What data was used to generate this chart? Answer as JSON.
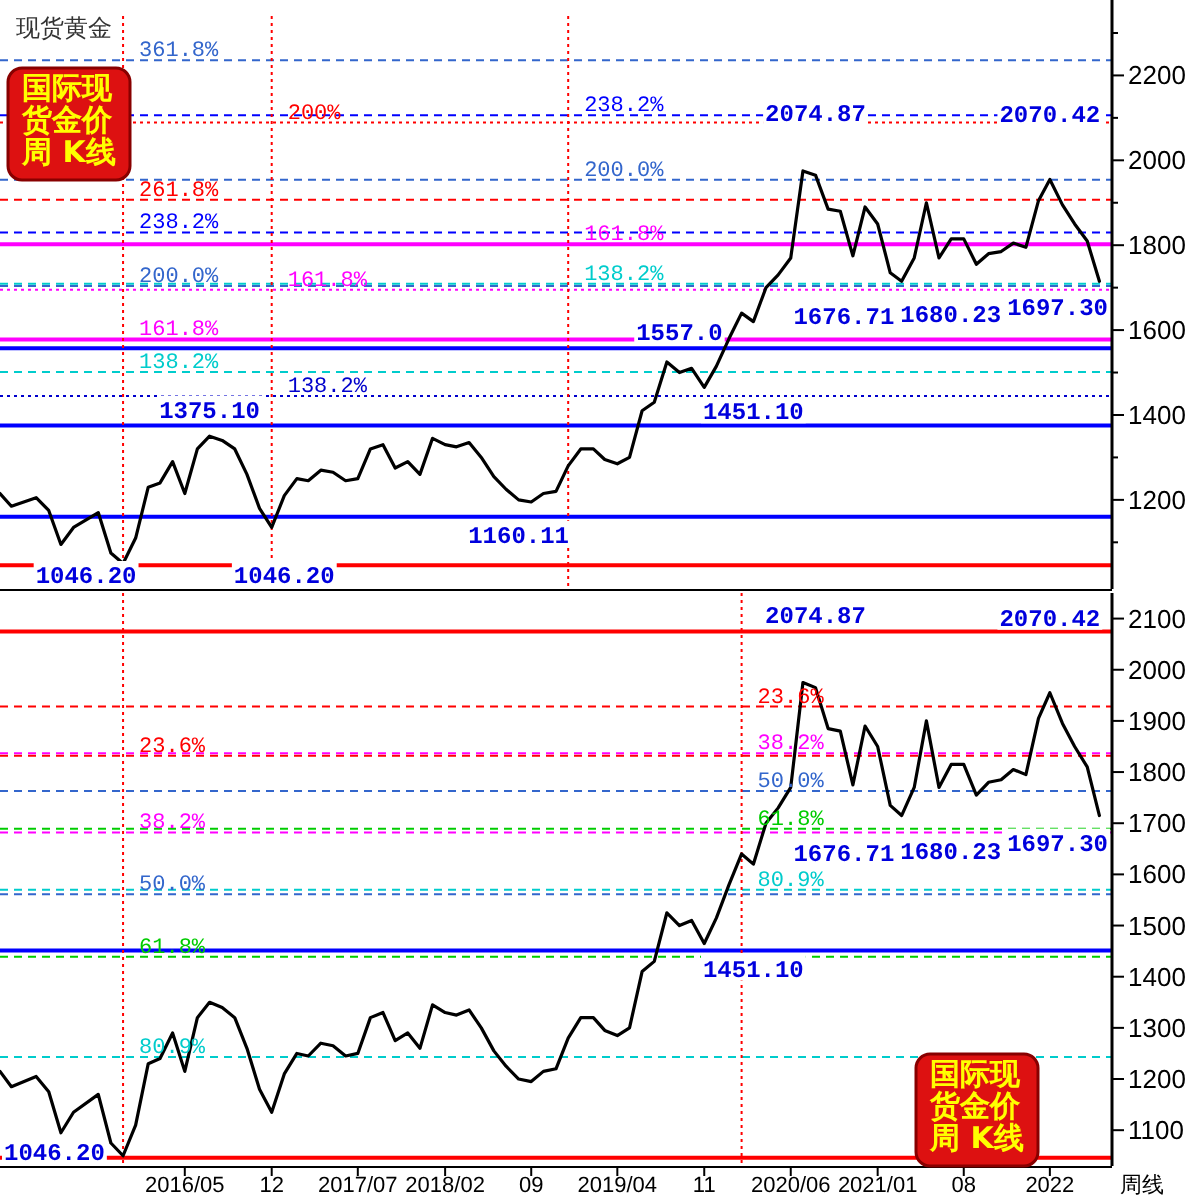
{
  "chart_data": [
    {
      "type": "line",
      "title": "现货黄金",
      "x": [
        "2015-02",
        "2015-03",
        "2015-05",
        "2015-06",
        "2015-07",
        "2015-08",
        "2015-10",
        "2015-11",
        "2015-12",
        "2016-01",
        "2016-02",
        "2016-03",
        "2016-04",
        "2016-05",
        "2016-06",
        "2016-07",
        "2016-08",
        "2016-09",
        "2016-10",
        "2016-11",
        "2016-12",
        "2017-01",
        "2017-02",
        "2017-03",
        "2017-04",
        "2017-05",
        "2017-06",
        "2017-07",
        "2017-08",
        "2017-09",
        "2017-10",
        "2017-11",
        "2017-12",
        "2018-01",
        "2018-02",
        "2018-03",
        "2018-04",
        "2018-05",
        "2018-06",
        "2018-07",
        "2018-08",
        "2018-09",
        "2018-10",
        "2018-11",
        "2018-12",
        "2019-01",
        "2019-02",
        "2019-03",
        "2019-04",
        "2019-05",
        "2019-06",
        "2019-07",
        "2019-08",
        "2019-09",
        "2019-10",
        "2019-11",
        "2019-12",
        "2020-01",
        "2020-02",
        "2020-03",
        "2020-04",
        "2020-05",
        "2020-06",
        "2020-07",
        "2020-08",
        "2020-09",
        "2020-10",
        "2020-11",
        "2020-12",
        "2021-01",
        "2021-02",
        "2021-03",
        "2021-04",
        "2021-05",
        "2021-06",
        "2021-07",
        "2021-08",
        "2021-09",
        "2021-10",
        "2021-11",
        "2021-12",
        "2022-01",
        "2022-02",
        "2022-03",
        "2022-04",
        "2022-05",
        "2022-06",
        "2022-07"
      ],
      "series": [
        {
          "color": "#000000",
          "values": [
            1215,
            1185,
            1205,
            1175,
            1095,
            1135,
            1170,
            1075,
            1050,
            1110,
            1230,
            1240,
            1290,
            1215,
            1320,
            1350,
            1340,
            1320,
            1260,
            1180,
            1135,
            1210,
            1250,
            1245,
            1270,
            1265,
            1245,
            1250,
            1320,
            1330,
            1275,
            1290,
            1260,
            1345,
            1330,
            1325,
            1335,
            1300,
            1255,
            1225,
            1200,
            1195,
            1215,
            1220,
            1280,
            1320,
            1320,
            1295,
            1285,
            1300,
            1410,
            1430,
            1525,
            1500,
            1510,
            1465,
            1515,
            1580,
            1640,
            1620,
            1700,
            1730,
            1770,
            1975,
            1965,
            1885,
            1880,
            1775,
            1890,
            1850,
            1735,
            1715,
            1770,
            1900,
            1770,
            1815,
            1815,
            1755,
            1780,
            1785,
            1805,
            1795,
            1905,
            1955,
            1895,
            1850,
            1810,
            1715
          ]
        }
      ],
      "xlim": [
        "2015-02",
        "2022-08"
      ],
      "ylim": [
        990,
        2340
      ],
      "yticks": [
        {
          "value": 1100,
          "label": null
        },
        1200,
        {
          "value": 1300,
          "label": null
        },
        1400,
        {
          "value": 1500,
          "label": null
        },
        1600,
        {
          "value": 1700,
          "label": null
        },
        1800,
        {
          "value": 1900,
          "label": null
        },
        2000,
        {
          "value": 2100,
          "label": null
        },
        2200,
        {
          "value": 2300,
          "label": null
        }
      ],
      "tick_labels": "y",
      "ref_lines": [
        {
          "axis": "y",
          "value": 2236,
          "color": "#3366cc",
          "line_style": "dashed"
        },
        {
          "axis": "y",
          "value": 2089,
          "color": "#ff0000",
          "line_style": "dotted"
        },
        {
          "axis": "y",
          "value": 1907,
          "color": "#ff0000",
          "line_style": "dashed"
        },
        {
          "axis": "y",
          "value": 1830,
          "color": "#0000ff",
          "line_style": "dashed"
        },
        {
          "axis": "y",
          "value": 1704,
          "color": "#3366cc",
          "line_style": "dashed"
        },
        {
          "axis": "y",
          "value": 1578,
          "color": "#ff00ff",
          "line_style": "solid"
        },
        {
          "axis": "y",
          "value": 1501,
          "color": "#00cccc",
          "line_style": "dashed"
        },
        {
          "axis": "y",
          "value": 1695,
          "color": "#ff00ff",
          "line_style": "dotted"
        },
        {
          "axis": "y",
          "value": 1445,
          "color": "#0000cc",
          "line_style": "dotted"
        },
        {
          "axis": "y",
          "value": 2106,
          "color": "#0000ff",
          "line_style": "dashed"
        },
        {
          "axis": "y",
          "value": 1954,
          "color": "#3366cc",
          "line_style": "dashed"
        },
        {
          "axis": "y",
          "value": 1802,
          "color": "#ff00ff",
          "line_style": "solid"
        },
        {
          "axis": "y",
          "value": 1709,
          "color": "#00cccc",
          "line_style": "dashed"
        },
        {
          "axis": "y",
          "value": 1375.1,
          "color": "#0000ff",
          "line_style": "solid"
        },
        {
          "axis": "y",
          "value": 1557,
          "color": "#0000ff",
          "line_style": "solid"
        },
        {
          "axis": "y",
          "value": 1160.11,
          "color": "#0000ff",
          "line_style": "solid"
        },
        {
          "axis": "y",
          "value": 1046.2,
          "color": "#ff0000",
          "line_style": "solid"
        },
        {
          "axis": "x",
          "value": "2015-12",
          "color": "#ff0000",
          "line_style": "dotted"
        },
        {
          "axis": "x",
          "value": "2016-12",
          "color": "#ff0000",
          "line_style": "dotted"
        },
        {
          "axis": "x",
          "value": "2018-12",
          "color": "#ff0000",
          "line_style": "dotted"
        }
      ],
      "annotations": [
        "国际现货金价周 K线",
        {
          "text": "361.8%",
          "x": "2015-12",
          "y": 2236
        },
        {
          "text": "261.8%",
          "x": "2015-12",
          "y": 1907
        },
        {
          "text": "238.2%",
          "x": "2015-12",
          "y": 1830
        },
        {
          "text": "200.0%",
          "x": "2015-12",
          "y": 1704
        },
        {
          "text": "161.8%",
          "x": "2015-12",
          "y": 1578
        },
        {
          "text": "138.2%",
          "x": "2015-12",
          "y": 1501
        },
        {
          "text": "200%",
          "x": "2016-12",
          "y": 2089
        },
        {
          "text": "161.8%",
          "x": "2016-12",
          "y": 1695
        },
        {
          "text": "138.2%",
          "x": "2016-12",
          "y": 1445
        },
        {
          "text": "238.2%",
          "x": "2018-12",
          "y": 2106
        },
        {
          "text": "200.0%",
          "x": "2018-12",
          "y": 1954
        },
        {
          "text": "161.8%",
          "x": "2018-12",
          "y": 1802
        },
        {
          "text": "138.2%",
          "x": "2018-12",
          "y": 1709
        },
        {
          "text": "2074.87",
          "x": "2020-08",
          "y": 2074.87
        },
        {
          "text": "2070.42",
          "x": "2022-03",
          "y": 2070.42
        },
        {
          "text": "1676.71",
          "x": "2021-03",
          "y": 1676.71
        },
        {
          "text": "1680.23",
          "x": "2021-08",
          "y": 1680.23
        },
        {
          "text": "1697.30",
          "x": "2022-07",
          "y": 1697.3
        },
        {
          "text": "1451.10",
          "x": "2020-03",
          "y": 1451.1
        },
        {
          "text": "1557.0",
          "x": "2019-09",
          "y": 1557
        },
        {
          "text": "1375.10",
          "x": "2016-07",
          "y": 1375.1
        },
        {
          "text": "1160.11",
          "x": "2018-08",
          "y": 1160.11
        },
        {
          "text": "1046.20",
          "x": "2015-09",
          "y": 1046.2
        },
        {
          "text": "1046.20",
          "x": "2017-01",
          "y": 1046.2
        }
      ]
    },
    {
      "type": "line",
      "xlabel": "周线",
      "x": [
        "2015-02",
        "2015-03",
        "2015-05",
        "2015-06",
        "2015-07",
        "2015-08",
        "2015-10",
        "2015-11",
        "2015-12",
        "2016-01",
        "2016-02",
        "2016-03",
        "2016-04",
        "2016-05",
        "2016-06",
        "2016-07",
        "2016-08",
        "2016-09",
        "2016-10",
        "2016-11",
        "2016-12",
        "2017-01",
        "2017-02",
        "2017-03",
        "2017-04",
        "2017-05",
        "2017-06",
        "2017-07",
        "2017-08",
        "2017-09",
        "2017-10",
        "2017-11",
        "2017-12",
        "2018-01",
        "2018-02",
        "2018-03",
        "2018-04",
        "2018-05",
        "2018-06",
        "2018-07",
        "2018-08",
        "2018-09",
        "2018-10",
        "2018-11",
        "2018-12",
        "2019-01",
        "2019-02",
        "2019-03",
        "2019-04",
        "2019-05",
        "2019-06",
        "2019-07",
        "2019-08",
        "2019-09",
        "2019-10",
        "2019-11",
        "2019-12",
        "2020-01",
        "2020-02",
        "2020-03",
        "2020-04",
        "2020-05",
        "2020-06",
        "2020-07",
        "2020-08",
        "2020-09",
        "2020-10",
        "2020-11",
        "2020-12",
        "2021-01",
        "2021-02",
        "2021-03",
        "2021-04",
        "2021-05",
        "2021-06",
        "2021-07",
        "2021-08",
        "2021-09",
        "2021-10",
        "2021-11",
        "2021-12",
        "2022-01",
        "2022-02",
        "2022-03",
        "2022-04",
        "2022-05",
        "2022-06",
        "2022-07"
      ],
      "series": [
        {
          "color": "#000000",
          "values": [
            1215,
            1185,
            1205,
            1175,
            1095,
            1135,
            1170,
            1075,
            1050,
            1110,
            1230,
            1240,
            1290,
            1215,
            1320,
            1350,
            1340,
            1320,
            1260,
            1180,
            1135,
            1210,
            1250,
            1245,
            1270,
            1265,
            1245,
            1250,
            1320,
            1330,
            1275,
            1290,
            1260,
            1345,
            1330,
            1325,
            1335,
            1300,
            1255,
            1225,
            1200,
            1195,
            1215,
            1220,
            1280,
            1320,
            1320,
            1295,
            1285,
            1300,
            1410,
            1430,
            1525,
            1500,
            1510,
            1465,
            1515,
            1580,
            1640,
            1620,
            1700,
            1730,
            1770,
            1975,
            1965,
            1885,
            1880,
            1775,
            1890,
            1850,
            1735,
            1715,
            1770,
            1900,
            1770,
            1815,
            1815,
            1755,
            1780,
            1785,
            1805,
            1795,
            1905,
            1955,
            1895,
            1850,
            1810,
            1715
          ]
        }
      ],
      "xlim": [
        "2015-02",
        "2022-08"
      ],
      "ylim": [
        1030,
        2150
      ],
      "xticks": [
        {
          "value": "2016-05",
          "label": "2016/05"
        },
        {
          "value": "2016-12",
          "label": "12"
        },
        {
          "value": "2017-07",
          "label": "2017/07"
        },
        {
          "value": "2018-02",
          "label": "2018/02"
        },
        {
          "value": "2018-09",
          "label": "09"
        },
        {
          "value": "2019-04",
          "label": "2019/04"
        },
        {
          "value": "2019-11",
          "label": "11"
        },
        {
          "value": "2020-06",
          "label": "2020/06"
        },
        {
          "value": "2021-01",
          "label": "2021/01"
        },
        {
          "value": "2021-08",
          "label": "08"
        },
        {
          "value": "2022-03",
          "label": "2022"
        }
      ],
      "yticks": [
        1100,
        1200,
        1300,
        1400,
        1500,
        1600,
        1700,
        1800,
        1900,
        2000,
        2100
      ],
      "ref_lines": [
        {
          "axis": "y",
          "value": 2074.87,
          "color": "#ff0000",
          "line_style": "solid"
        },
        {
          "axis": "y",
          "value": 1451.1,
          "color": "#0000ff",
          "line_style": "solid"
        },
        {
          "axis": "y",
          "value": 1046.2,
          "color": "#ff0000",
          "line_style": "solid"
        },
        {
          "axis": "y",
          "value": 1832,
          "color": "#ff0000",
          "line_style": "dashed"
        },
        {
          "axis": "y",
          "value": 1682,
          "color": "#ff00ff",
          "line_style": "dashed"
        },
        {
          "axis": "y",
          "value": 1561,
          "color": "#3366cc",
          "line_style": "dashed"
        },
        {
          "axis": "y",
          "value": 1439,
          "color": "#00cc00",
          "line_style": "dashed"
        },
        {
          "axis": "y",
          "value": 1243,
          "color": "#00cccc",
          "line_style": "dashed"
        },
        {
          "axis": "y",
          "value": 1928,
          "color": "#ff0000",
          "line_style": "dashed"
        },
        {
          "axis": "y",
          "value": 1837,
          "color": "#ff00ff",
          "line_style": "dashed"
        },
        {
          "axis": "y",
          "value": 1763,
          "color": "#3366cc",
          "line_style": "dashed"
        },
        {
          "axis": "y",
          "value": 1689,
          "color": "#00cc00",
          "line_style": "dashed"
        },
        {
          "axis": "y",
          "value": 1570,
          "color": "#00cccc",
          "line_style": "dashed"
        },
        {
          "axis": "x",
          "value": "2015-12",
          "color": "#ff0000",
          "line_style": "dotted"
        },
        {
          "axis": "x",
          "value": "2020-02",
          "color": "#ff0000",
          "line_style": "dotted"
        }
      ],
      "annotations": [
        "国际现货金价周 K线",
        {
          "text": "23.6%",
          "x": "2015-12",
          "y": 1832
        },
        {
          "text": "38.2%",
          "x": "2015-12",
          "y": 1682
        },
        {
          "text": "50.0%",
          "x": "2015-12",
          "y": 1561
        },
        {
          "text": "61.8%",
          "x": "2015-12",
          "y": 1439
        },
        {
          "text": "80.9%",
          "x": "2015-12",
          "y": 1243
        },
        {
          "text": "23.6%",
          "x": "2020-02",
          "y": 1928
        },
        {
          "text": "38.2%",
          "x": "2020-02",
          "y": 1837
        },
        {
          "text": "50.0%",
          "x": "2020-02",
          "y": 1763
        },
        {
          "text": "61.8%",
          "x": "2020-02",
          "y": 1689
        },
        {
          "text": "80.9%",
          "x": "2020-02",
          "y": 1570
        },
        {
          "text": "2074.87",
          "x": "2020-08",
          "y": 2074.87
        },
        {
          "text": "2070.42",
          "x": "2022-03",
          "y": 2070.42
        },
        {
          "text": "1676.71",
          "x": "2021-03",
          "y": 1676.71
        },
        {
          "text": "1680.23",
          "x": "2021-08",
          "y": 1680.23
        },
        {
          "text": "1697.30",
          "x": "2022-07",
          "y": 1697.3
        },
        {
          "text": "1451.10",
          "x": "2020-03",
          "y": 1451.1
        },
        {
          "text": "1046.20",
          "x": "2015-05",
          "y": 1046.2
        }
      ]
    }
  ]
}
